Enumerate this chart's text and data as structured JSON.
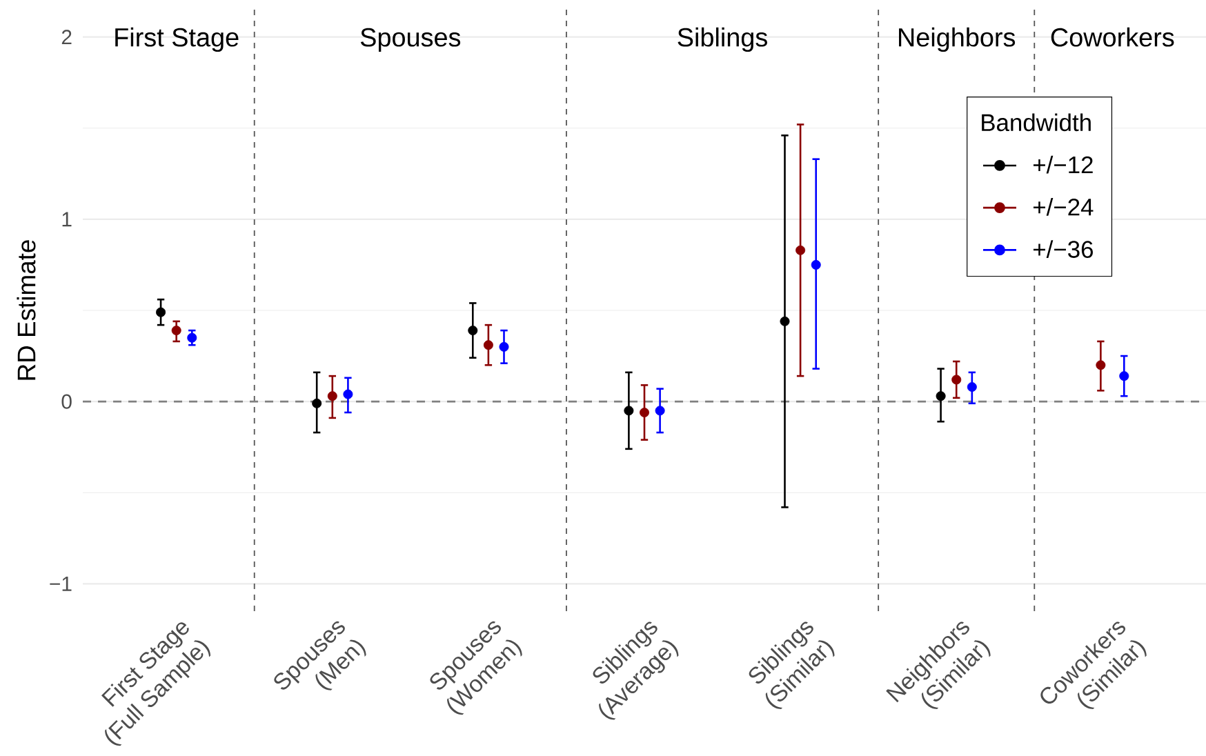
{
  "chart_data": {
    "type": "scatter",
    "ylabel": "RD Estimate",
    "legend_title": "Bandwidth",
    "categories": [
      "First Stage\n(Full Sample)",
      "Spouses\n(Men)",
      "Spouses\n(Women)",
      "Siblings\n(Average)",
      "Siblings\n(Similar)",
      "Neighbors\n(Similar)",
      "Coworkers\n(Similar)"
    ],
    "series": [
      {
        "name": "+/−12",
        "color": "#000000",
        "values": [
          0.49,
          -0.01,
          0.39,
          -0.05,
          0.44,
          0.03,
          null
        ],
        "errors": [
          [
            0.42,
            0.56
          ],
          [
            -0.17,
            0.16
          ],
          [
            0.24,
            0.54
          ],
          [
            -0.26,
            0.16
          ],
          [
            -0.58,
            1.46
          ],
          [
            -0.11,
            0.18
          ],
          null
        ]
      },
      {
        "name": "+/−24",
        "color": "#8b0000",
        "values": [
          0.39,
          0.03,
          0.31,
          -0.06,
          0.83,
          0.12,
          0.2
        ],
        "errors": [
          [
            0.33,
            0.44
          ],
          [
            -0.09,
            0.14
          ],
          [
            0.2,
            0.42
          ],
          [
            -0.21,
            0.09
          ],
          [
            0.14,
            1.52
          ],
          [
            0.02,
            0.22
          ],
          [
            0.06,
            0.33
          ]
        ]
      },
      {
        "name": "+/−36",
        "color": "#0000ff",
        "values": [
          0.35,
          0.04,
          0.3,
          -0.05,
          0.75,
          0.08,
          0.14
        ],
        "errors": [
          [
            0.31,
            0.39
          ],
          [
            -0.06,
            0.13
          ],
          [
            0.21,
            0.39
          ],
          [
            -0.17,
            0.07
          ],
          [
            0.18,
            1.33
          ],
          [
            -0.01,
            0.16
          ],
          [
            0.03,
            0.25
          ]
        ]
      }
    ],
    "ylim": [
      -1.15,
      2.15
    ],
    "yticks": [
      {
        "value": -1,
        "label": "−1"
      },
      0,
      1,
      2
    ],
    "grid": "y",
    "legend": "top right",
    "marker": "circle",
    "ref_lines": [
      {
        "axis": "y",
        "value": 0,
        "color": "#808080",
        "line_style": "dashed"
      }
    ],
    "annotations": [
      "First Stage",
      "Spouses",
      "Siblings",
      "Neighbors",
      "Coworkers"
    ]
  }
}
